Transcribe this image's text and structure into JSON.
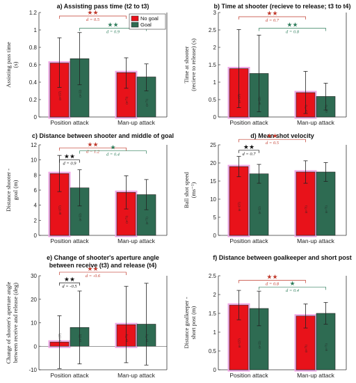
{
  "colors": {
    "no_goal": "#e8121a",
    "goal": "#2e6b52",
    "red_sig": "#c0392b",
    "green_sig": "#2e7d5b",
    "black_sig": "#111111",
    "halo": "#f0a6e6"
  },
  "legend": {
    "items": [
      "No goal",
      "Goal"
    ]
  },
  "chart_data": [
    {
      "type": "bar",
      "title": "a) Assisting pass time (t2 to t3)",
      "ylabel": [
        "Assisting pass time",
        "(s)"
      ],
      "categories": [
        "Position attack",
        "Man-up attack"
      ],
      "ylim": [
        0,
        1.2
      ],
      "yticks": [
        0,
        0.2,
        0.4,
        0.6,
        0.8,
        1,
        1.2
      ],
      "ytick_labels": [
        "0",
        "0.2",
        "0.4",
        "0.6",
        "0.8",
        "1",
        "1.2"
      ],
      "series": [
        {
          "name": "No goal",
          "values": [
            0.62,
            0.51
          ],
          "err_low": [
            0.34,
            0.33
          ],
          "err_high": [
            0.91,
            0.68
          ],
          "n": [
            "(n=157)",
            "(n=71)"
          ]
        },
        {
          "name": "Goal",
          "values": [
            0.67,
            0.46
          ],
          "err_low": [
            0.37,
            0.3
          ],
          "err_high": [
            0.97,
            0.61
          ],
          "n": [
            "(n=22)",
            "(n=71)"
          ]
        }
      ],
      "sig": [
        {
          "from": "ng0",
          "to": "ng1",
          "stars": "★★",
          "d": "d = 0.5",
          "color": "red",
          "level": 1.16
        },
        {
          "from": "g0",
          "to": "g1",
          "stars": "★★",
          "d": "d = 0.9",
          "color": "green",
          "level": 1.02
        }
      ]
    },
    {
      "type": "bar",
      "title": "b) Time at shooter (recieve to release; t3 to t4)",
      "ylabel": [
        "Time at shooter",
        "(recieve to release) (s)"
      ],
      "categories": [
        "Position attack",
        "Man-up attack"
      ],
      "ylim": [
        0,
        3
      ],
      "yticks": [
        0,
        0.5,
        1,
        1.5,
        2,
        2.5,
        3
      ],
      "ytick_labels": [
        "0",
        "0.5",
        "1",
        "1.5",
        "2",
        "2.5",
        "3"
      ],
      "series": [
        {
          "name": "No goal",
          "values": [
            1.39,
            0.7
          ],
          "err_low": [
            0.27,
            0.1
          ],
          "err_high": [
            2.51,
            1.31
          ],
          "n": [
            "(n=157)",
            "(n=71)"
          ]
        },
        {
          "name": "Goal",
          "values": [
            1.25,
            0.59
          ],
          "err_low": [
            0.15,
            0.2
          ],
          "err_high": [
            2.35,
            0.97
          ],
          "n": [
            "(n=22)",
            "(n=71)"
          ]
        }
      ],
      "sig": [
        {
          "from": "ng0",
          "to": "ng1",
          "stars": "★★",
          "d": "d = 0.7",
          "color": "red",
          "level": 2.88
        },
        {
          "from": "g0",
          "to": "g1",
          "stars": "★★",
          "d": "d = 0.8",
          "color": "green",
          "level": 2.55
        }
      ]
    },
    {
      "type": "bar",
      "title": "c) Distance between shooter and middle of goal",
      "ylabel": [
        "Distance shooter -",
        "goal (m)"
      ],
      "categories": [
        "Position attack",
        "Man-up attack"
      ],
      "ylim": [
        0,
        12
      ],
      "yticks": [
        0,
        2,
        4,
        6,
        8,
        10,
        12
      ],
      "ytick_labels": [
        "0",
        "2",
        "4",
        "6",
        "8",
        "10",
        "12"
      ],
      "series": [
        {
          "name": "No goal",
          "values": [
            8.2,
            5.7
          ],
          "err_low": [
            5.8,
            3.5
          ],
          "err_high": [
            10.6,
            7.9
          ],
          "n": [
            "(n=157)",
            "(n=71)"
          ]
        },
        {
          "name": "Goal",
          "values": [
            6.3,
            5.4
          ],
          "err_low": [
            3.9,
            3.4
          ],
          "err_high": [
            8.7,
            7.4
          ],
          "n": [
            "(n=22)",
            "(n=71)"
          ]
        }
      ],
      "sig": [
        {
          "from": "ng0",
          "to": "ng1",
          "stars": "★★",
          "d": "d = 1.2",
          "color": "red",
          "level": 11.6
        },
        {
          "from": "ng0",
          "to": "g0",
          "stars": "★★",
          "d": "d = 0.9",
          "color": "black",
          "level": 10.0
        },
        {
          "from": "g0",
          "to": "g1",
          "stars": "★",
          "d": "d = 0.4",
          "color": "green",
          "level": 11.2
        }
      ]
    },
    {
      "type": "bar",
      "title": "d) Mean shot velocity",
      "ylabel": [
        "Ball shot speed",
        "(ms⁻¹)"
      ],
      "categories": [
        "Position attack",
        "Man-up attack"
      ],
      "ylim": [
        0,
        25
      ],
      "yticks": [
        0,
        5,
        10,
        15,
        20,
        25
      ],
      "ytick_labels": [
        "0",
        "5",
        "10",
        "15",
        "20",
        "25"
      ],
      "series": [
        {
          "name": "No goal",
          "values": [
            19.0,
            17.5
          ],
          "err_low": [
            16.2,
            14.4
          ],
          "err_high": [
            21.8,
            20.6
          ],
          "n": [
            "(n=157)",
            "(n=71)"
          ]
        },
        {
          "name": "Goal",
          "values": [
            17.0,
            17.5
          ],
          "err_low": [
            14.4,
            14.9
          ],
          "err_high": [
            19.6,
            20.1
          ],
          "n": [
            "(n=22)",
            "(n=71)"
          ]
        }
      ],
      "sig": [
        {
          "from": "ng0",
          "to": "ng1",
          "stars": "★★",
          "d": "d = 0.5",
          "color": "red",
          "level": 26.5
        },
        {
          "from": "ng0",
          "to": "g0",
          "stars": "★★",
          "d": "d = 0.7",
          "color": "black",
          "level": 23.5
        }
      ]
    },
    {
      "type": "bar",
      "title": "e) Change of  shooter's aperture angle",
      "title2": "between receive (t3) and release (t4)",
      "ylabel": [
        "Change of shooter's aperture angle",
        "between receive and release (deg)"
      ],
      "categories": [
        "Position attack",
        "Man-up attack"
      ],
      "ylim": [
        -10,
        30
      ],
      "yticks": [
        -10,
        0,
        10,
        20,
        30
      ],
      "ytick_labels": [
        "-10",
        "0",
        "10",
        "20",
        "30"
      ],
      "series": [
        {
          "name": "No goal",
          "values": [
            1.8,
            9.2
          ],
          "err_low": [
            -9.5,
            -7.0
          ],
          "err_high": [
            13.0,
            25.5
          ],
          "n": [
            "(n=157)",
            "(n=71)"
          ]
        },
        {
          "name": "Goal",
          "values": [
            8.0,
            9.4
          ],
          "err_low": [
            -7.5,
            -8.0
          ],
          "err_high": [
            23.5,
            26.8
          ],
          "n": [
            "(n=22)",
            "(n=71)"
          ]
        }
      ],
      "sig": [
        {
          "from": "ng0",
          "to": "ng1",
          "stars": "★★",
          "d": "d = -0.6",
          "color": "red",
          "level": 31.5
        },
        {
          "from": "ng0",
          "to": "g0",
          "stars": "★★",
          "d": "d = -0.5",
          "color": "black",
          "level": 27.0
        }
      ]
    },
    {
      "type": "bar",
      "title": "f) Distance between goalkeeper and short post",
      "ylabel": [
        "Distance goalkeeper -",
        "short post (m)"
      ],
      "categories": [
        "Position attack",
        "Man-up attack"
      ],
      "ylim": [
        0,
        2.5
      ],
      "yticks": [
        0,
        0.5,
        1,
        1.5,
        2,
        2.5
      ],
      "ytick_labels": [
        "0",
        "0.5",
        "1",
        "1.5",
        "2",
        "2.5"
      ],
      "series": [
        {
          "name": "No goal",
          "values": [
            1.72,
            1.43
          ],
          "err_low": [
            1.33,
            1.11
          ],
          "err_high": [
            2.11,
            1.75
          ],
          "n": [
            "(n=157)",
            "(n=71)"
          ]
        },
        {
          "name": "Goal",
          "values": [
            1.63,
            1.5
          ],
          "err_low": [
            1.17,
            1.21
          ],
          "err_high": [
            2.09,
            1.79
          ],
          "n": [
            "(n=22)",
            "(n=71)"
          ]
        }
      ],
      "sig": [
        {
          "from": "ng0",
          "to": "ng1",
          "stars": "★★",
          "d": "d = 0.8",
          "color": "red",
          "level": 2.38
        },
        {
          "from": "g0",
          "to": "g1",
          "stars": "★",
          "d": "d = 0.4",
          "color": "green",
          "level": 2.2
        }
      ]
    }
  ]
}
